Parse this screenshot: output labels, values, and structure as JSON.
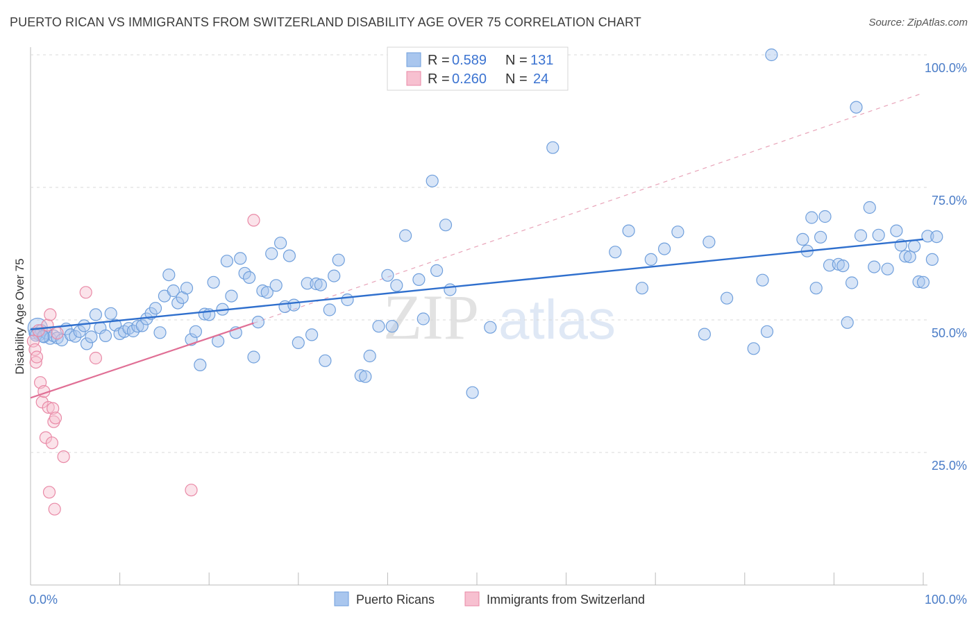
{
  "header": {
    "title": "PUERTO RICAN VS IMMIGRANTS FROM SWITZERLAND DISABILITY AGE OVER 75 CORRELATION CHART",
    "source": "Source: ZipAtlas.com"
  },
  "watermark": {
    "zip": "ZIP",
    "atlas": "atlas"
  },
  "legend": {
    "series1": {
      "r_label": "R = ",
      "r_value": "0.589",
      "n_label": "N = ",
      "n_value": "131"
    },
    "series2": {
      "r_label": "R = ",
      "r_value": "0.260",
      "n_label": "N = ",
      "n_value": "24"
    }
  },
  "colors": {
    "blue_fill": "#a9c6ee",
    "blue_stroke": "#6f9fdc",
    "blue_line": "#2f6fcd",
    "pink_fill": "#f7c0d0",
    "pink_stroke": "#e989a6",
    "pink_line": "#e06f95",
    "grid": "#d9d9d9",
    "tick_text": "#4a7cc7"
  },
  "chart_data": {
    "type": "scatter",
    "title": "PUERTO RICAN VS IMMIGRANTS FROM SWITZERLAND DISABILITY AGE OVER 75 CORRELATION CHART",
    "xlabel": "",
    "ylabel": "Disability Age Over 75",
    "xlim": [
      0,
      100
    ],
    "ylim": [
      0,
      102
    ],
    "x_tick_labels": [
      "0.0%",
      "100.0%"
    ],
    "y_ticks": [
      25,
      50,
      75,
      100
    ],
    "y_tick_labels": [
      "25.0%",
      "50.0%",
      "75.0%",
      "100.0%"
    ],
    "grid": true,
    "legend_position": "top-center",
    "series": [
      {
        "name": "Puerto Ricans",
        "stats": {
          "R": 0.589,
          "N": 131
        },
        "trend": {
          "x": [
            0,
            100
          ],
          "y": [
            48.2,
            65.2
          ]
        },
        "points": [
          [
            0.5,
            47.5
          ],
          [
            0.8,
            48.5
          ],
          [
            1.0,
            47.2
          ],
          [
            1.2,
            48.0
          ],
          [
            1.5,
            46.8
          ],
          [
            1.8,
            47.5
          ],
          [
            2.2,
            46.5
          ],
          [
            2.6,
            47.0
          ],
          [
            3.0,
            46.6
          ],
          [
            3.5,
            46.2
          ],
          [
            4.0,
            48.3
          ],
          [
            4.5,
            47.2
          ],
          [
            5.0,
            46.9
          ],
          [
            5.5,
            47.8
          ],
          [
            6.0,
            48.9
          ],
          [
            6.3,
            45.5
          ],
          [
            6.8,
            46.8
          ],
          [
            7.3,
            51.0
          ],
          [
            7.8,
            48.5
          ],
          [
            8.4,
            47.0
          ],
          [
            9.0,
            51.2
          ],
          [
            9.5,
            49.0
          ],
          [
            10.0,
            47.4
          ],
          [
            10.5,
            47.8
          ],
          [
            11.0,
            48.4
          ],
          [
            11.5,
            47.9
          ],
          [
            12.0,
            48.8
          ],
          [
            12.5,
            48.9
          ],
          [
            13.0,
            50.2
          ],
          [
            13.5,
            51.2
          ],
          [
            14.0,
            52.2
          ],
          [
            14.5,
            47.6
          ],
          [
            15.0,
            54.5
          ],
          [
            15.5,
            58.5
          ],
          [
            16.0,
            55.5
          ],
          [
            16.5,
            53.2
          ],
          [
            17.0,
            54.2
          ],
          [
            17.5,
            56.0
          ],
          [
            18.0,
            46.3
          ],
          [
            18.5,
            47.8
          ],
          [
            19.0,
            41.5
          ],
          [
            19.5,
            51.1
          ],
          [
            20.0,
            51.0
          ],
          [
            20.5,
            57.1
          ],
          [
            21.0,
            46.0
          ],
          [
            21.5,
            52.0
          ],
          [
            22.0,
            61.1
          ],
          [
            22.5,
            54.5
          ],
          [
            23.0,
            47.6
          ],
          [
            23.5,
            61.6
          ],
          [
            24.0,
            58.8
          ],
          [
            24.5,
            58.0
          ],
          [
            25.0,
            43.0
          ],
          [
            25.5,
            49.6
          ],
          [
            26.0,
            55.5
          ],
          [
            26.5,
            55.2
          ],
          [
            27.0,
            62.5
          ],
          [
            27.5,
            56.5
          ],
          [
            28.0,
            64.5
          ],
          [
            28.5,
            52.5
          ],
          [
            29.0,
            62.1
          ],
          [
            29.5,
            52.8
          ],
          [
            30.0,
            45.7
          ],
          [
            31.0,
            56.9
          ],
          [
            31.5,
            47.2
          ],
          [
            32.0,
            56.8
          ],
          [
            32.5,
            56.6
          ],
          [
            33.0,
            42.3
          ],
          [
            33.5,
            51.9
          ],
          [
            34.0,
            58.3
          ],
          [
            34.5,
            61.3
          ],
          [
            35.5,
            53.8
          ],
          [
            37.0,
            39.5
          ],
          [
            37.5,
            39.3
          ],
          [
            38.0,
            43.2
          ],
          [
            39.0,
            48.8
          ],
          [
            40.0,
            58.4
          ],
          [
            40.5,
            48.8
          ],
          [
            41.0,
            56.5
          ],
          [
            42.0,
            65.9
          ],
          [
            43.5,
            57.6
          ],
          [
            44.0,
            50.2
          ],
          [
            45.0,
            76.2
          ],
          [
            45.5,
            59.3
          ],
          [
            46.5,
            67.9
          ],
          [
            47.0,
            55.7
          ],
          [
            49.5,
            36.3
          ],
          [
            51.5,
            48.6
          ],
          [
            58.5,
            82.5
          ],
          [
            65.5,
            62.8
          ],
          [
            67.0,
            66.8
          ],
          [
            68.5,
            56.0
          ],
          [
            69.5,
            61.4
          ],
          [
            71.0,
            63.4
          ],
          [
            72.5,
            66.6
          ],
          [
            75.5,
            47.3
          ],
          [
            76.0,
            64.7
          ],
          [
            78.0,
            54.1
          ],
          [
            81.0,
            44.6
          ],
          [
            82.0,
            57.5
          ],
          [
            82.5,
            47.8
          ],
          [
            83.0,
            100.0
          ],
          [
            86.5,
            65.2
          ],
          [
            87.0,
            63.0
          ],
          [
            87.5,
            69.3
          ],
          [
            88.0,
            56.0
          ],
          [
            88.5,
            65.6
          ],
          [
            89.0,
            69.5
          ],
          [
            89.5,
            60.3
          ],
          [
            90.5,
            60.5
          ],
          [
            91.0,
            60.2
          ],
          [
            91.5,
            49.5
          ],
          [
            92.0,
            57.0
          ],
          [
            92.5,
            90.1
          ],
          [
            93.0,
            65.9
          ],
          [
            94.0,
            71.2
          ],
          [
            94.5,
            60.0
          ],
          [
            95.0,
            66.0
          ],
          [
            96.0,
            59.6
          ],
          [
            97.0,
            66.8
          ],
          [
            97.5,
            64.1
          ],
          [
            98.0,
            62.0
          ],
          [
            98.5,
            61.9
          ],
          [
            99.0,
            63.9
          ],
          [
            99.5,
            57.2
          ],
          [
            100.0,
            57.1
          ],
          [
            100.5,
            65.8
          ],
          [
            101.0,
            61.4
          ],
          [
            101.5,
            65.7
          ],
          [
            0.6,
            47.1
          ],
          [
            1.4,
            46.9
          ]
        ]
      },
      {
        "name": "Immigrants from Switzerland",
        "stats": {
          "R": 0.26,
          "N": 24
        },
        "trend": {
          "x": [
            0,
            25
          ],
          "y": [
            35.3,
            49.4
          ]
        },
        "trend_extension": {
          "x": [
            25,
            100
          ],
          "y": [
            49.4,
            92.8
          ],
          "style": "dashed"
        },
        "points": [
          [
            0.3,
            46.0
          ],
          [
            0.5,
            44.4
          ],
          [
            0.6,
            42.0
          ],
          [
            0.7,
            43.0
          ],
          [
            0.9,
            48.0
          ],
          [
            1.1,
            38.2
          ],
          [
            1.3,
            34.5
          ],
          [
            1.5,
            36.5
          ],
          [
            1.7,
            27.8
          ],
          [
            1.9,
            49.0
          ],
          [
            2.0,
            33.5
          ],
          [
            2.1,
            17.5
          ],
          [
            2.2,
            51.0
          ],
          [
            2.4,
            26.8
          ],
          [
            2.5,
            33.3
          ],
          [
            2.6,
            30.8
          ],
          [
            2.7,
            14.3
          ],
          [
            2.8,
            31.5
          ],
          [
            3.0,
            47.5
          ],
          [
            3.7,
            24.2
          ],
          [
            6.2,
            55.2
          ],
          [
            7.3,
            42.8
          ],
          [
            18.0,
            17.9
          ],
          [
            25.0,
            68.8
          ]
        ]
      }
    ]
  },
  "bottom_legend": {
    "series1": "Puerto Ricans",
    "series2": "Immigrants from Switzerland"
  }
}
